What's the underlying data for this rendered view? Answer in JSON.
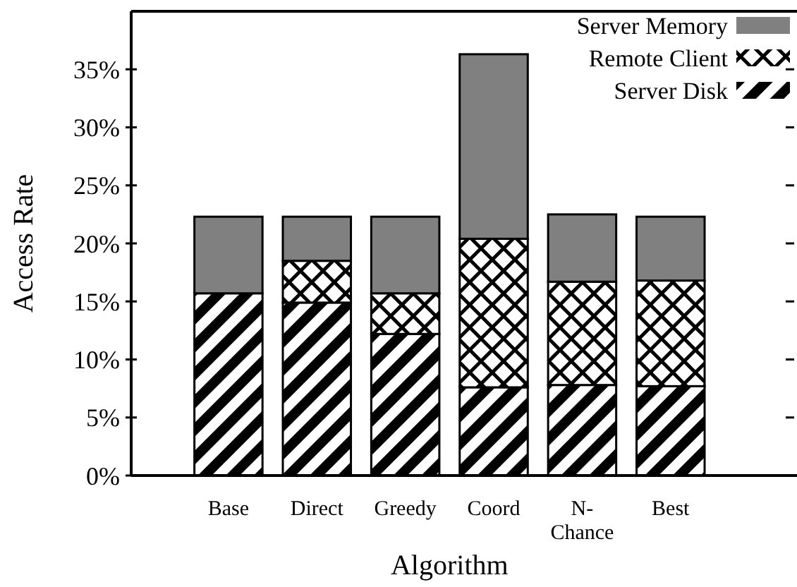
{
  "chart_data": {
    "type": "bar",
    "stacked": true,
    "xlabel": "Algorithm",
    "ylabel": "Access Rate",
    "categories": [
      "Base",
      "Direct",
      "Greedy",
      "Coord",
      "N-Chance",
      "Best"
    ],
    "series": [
      {
        "name": "Server Disk",
        "color": "#000000",
        "values": [
          15.7,
          14.9,
          12.2,
          7.6,
          7.8,
          7.7
        ]
      },
      {
        "name": "Remote Client",
        "color": "#000000",
        "values": [
          0,
          3.6,
          3.5,
          12.8,
          8.9,
          9.1
        ]
      },
      {
        "name": "Server Memory",
        "color": "#808080",
        "values": [
          6.6,
          3.8,
          6.6,
          15.9,
          5.8,
          5.5
        ]
      }
    ],
    "ylim": [
      0,
      40
    ],
    "yticks": [
      {
        "value": 0,
        "label": "0%"
      },
      {
        "value": 5,
        "label": "5%"
      },
      {
        "value": 10,
        "label": "10%"
      },
      {
        "value": 15,
        "label": "15%"
      },
      {
        "value": 20,
        "label": "20%"
      },
      {
        "value": 25,
        "label": "25%"
      },
      {
        "value": 30,
        "label": "30%"
      },
      {
        "value": 35,
        "label": "35%"
      }
    ],
    "legend": "top right"
  }
}
